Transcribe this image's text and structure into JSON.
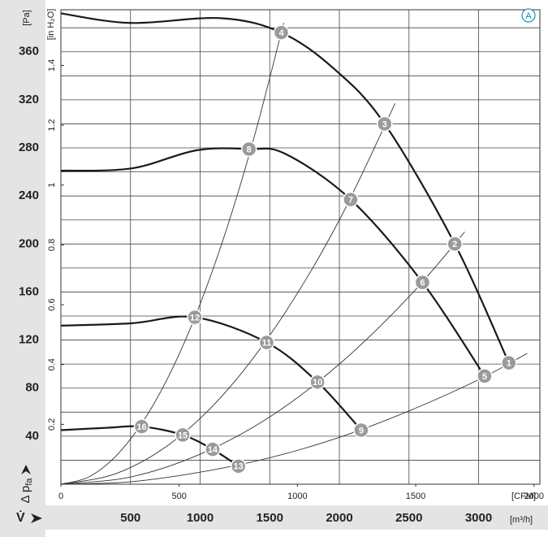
{
  "chart_data": {
    "type": "line",
    "badge": "A",
    "y_unit": "[Pa]",
    "y2_unit": "[in H₂O]",
    "y_label": "Δ p",
    "y_label_sub": "fa",
    "x_label": "V̇",
    "x_unit": "[m³/h]",
    "x2_unit": "[CFM]",
    "xlim": [
      0,
      3440
    ],
    "xticks": [
      500,
      1000,
      1500,
      2000,
      2500,
      3000
    ],
    "x2lim": [
      0,
      2025
    ],
    "x2ticks": [
      0,
      500,
      1000,
      1500,
      2000
    ],
    "ylim": [
      0,
      395
    ],
    "yticks": [
      40,
      80,
      120,
      160,
      200,
      240,
      280,
      320,
      360
    ],
    "yminor": [
      20,
      60,
      100,
      140,
      180,
      220,
      260,
      300,
      340,
      380
    ],
    "y2lim": [
      0,
      1.586
    ],
    "y2ticks": [
      0.2,
      0.4,
      0.6,
      0.8,
      1.0,
      1.2,
      1.4
    ],
    "grid": true,
    "series": [
      {
        "color": "#1a1a1a",
        "width": 2.2,
        "x": [
          0,
          500,
          1150,
          1583,
          1960,
          2325,
          2829,
          3217
        ],
        "values": [
          392,
          384,
          388,
          376,
          346,
          300,
          200,
          101
        ]
      },
      {
        "color": "#1a1a1a",
        "width": 2.2,
        "x": [
          0,
          510,
          974,
          1351,
          1612,
          2081,
          2597,
          3043
        ],
        "values": [
          261,
          263,
          278,
          279,
          275,
          237,
          168,
          90
        ]
      },
      {
        "color": "#1a1a1a",
        "width": 2.2,
        "x": [
          0,
          510,
          962,
          1478,
          1843,
          2157
        ],
        "values": [
          132,
          134,
          139,
          118,
          85,
          45
        ]
      },
      {
        "color": "#1a1a1a",
        "width": 2.2,
        "x": [
          0,
          336,
          580,
          875,
          1090,
          1275
        ],
        "values": [
          45,
          47,
          48,
          41,
          29,
          15
        ]
      },
      {
        "color": "#333333",
        "width": 0.9,
        "x": [
          0,
          200,
          400,
          600,
          800,
          1000,
          1200,
          1400,
          1600
        ],
        "values": [
          0,
          6,
          24,
          54,
          96,
          150,
          216,
          294,
          384
        ]
      },
      {
        "color": "#333333",
        "width": 0.9,
        "x": [
          0,
          400,
          800,
          1200,
          1600,
          2000,
          2400
        ],
        "values": [
          0,
          9,
          35,
          79,
          141,
          220,
          317
        ]
      },
      {
        "color": "#333333",
        "width": 0.9,
        "x": [
          0,
          500,
          1000,
          1500,
          2000,
          2500,
          2900
        ],
        "values": [
          0,
          6,
          25,
          56,
          100,
          156,
          210
        ]
      },
      {
        "color": "#333333",
        "width": 0.9,
        "x": [
          0,
          500,
          1000,
          1500,
          2000,
          2500,
          3000,
          3350
        ],
        "values": [
          0,
          2,
          10,
          22,
          39,
          61,
          87,
          109
        ]
      }
    ],
    "markers": [
      {
        "label": "1",
        "x": 3217,
        "y": 101
      },
      {
        "label": "2",
        "x": 2829,
        "y": 200
      },
      {
        "label": "3",
        "x": 2325,
        "y": 300
      },
      {
        "label": "4",
        "x": 1583,
        "y": 376
      },
      {
        "label": "5",
        "x": 3043,
        "y": 90
      },
      {
        "label": "6",
        "x": 2597,
        "y": 168
      },
      {
        "label": "7",
        "x": 2081,
        "y": 237
      },
      {
        "label": "8",
        "x": 1351,
        "y": 279
      },
      {
        "label": "9",
        "x": 2157,
        "y": 45
      },
      {
        "label": "10",
        "x": 1843,
        "y": 85
      },
      {
        "label": "11",
        "x": 1478,
        "y": 118
      },
      {
        "label": "12",
        "x": 962,
        "y": 139
      },
      {
        "label": "13",
        "x": 1275,
        "y": 15
      },
      {
        "label": "14",
        "x": 1090,
        "y": 29
      },
      {
        "label": "15",
        "x": 875,
        "y": 41
      },
      {
        "label": "16",
        "x": 580,
        "y": 48
      }
    ],
    "marker_color": "#9a9a9a"
  }
}
